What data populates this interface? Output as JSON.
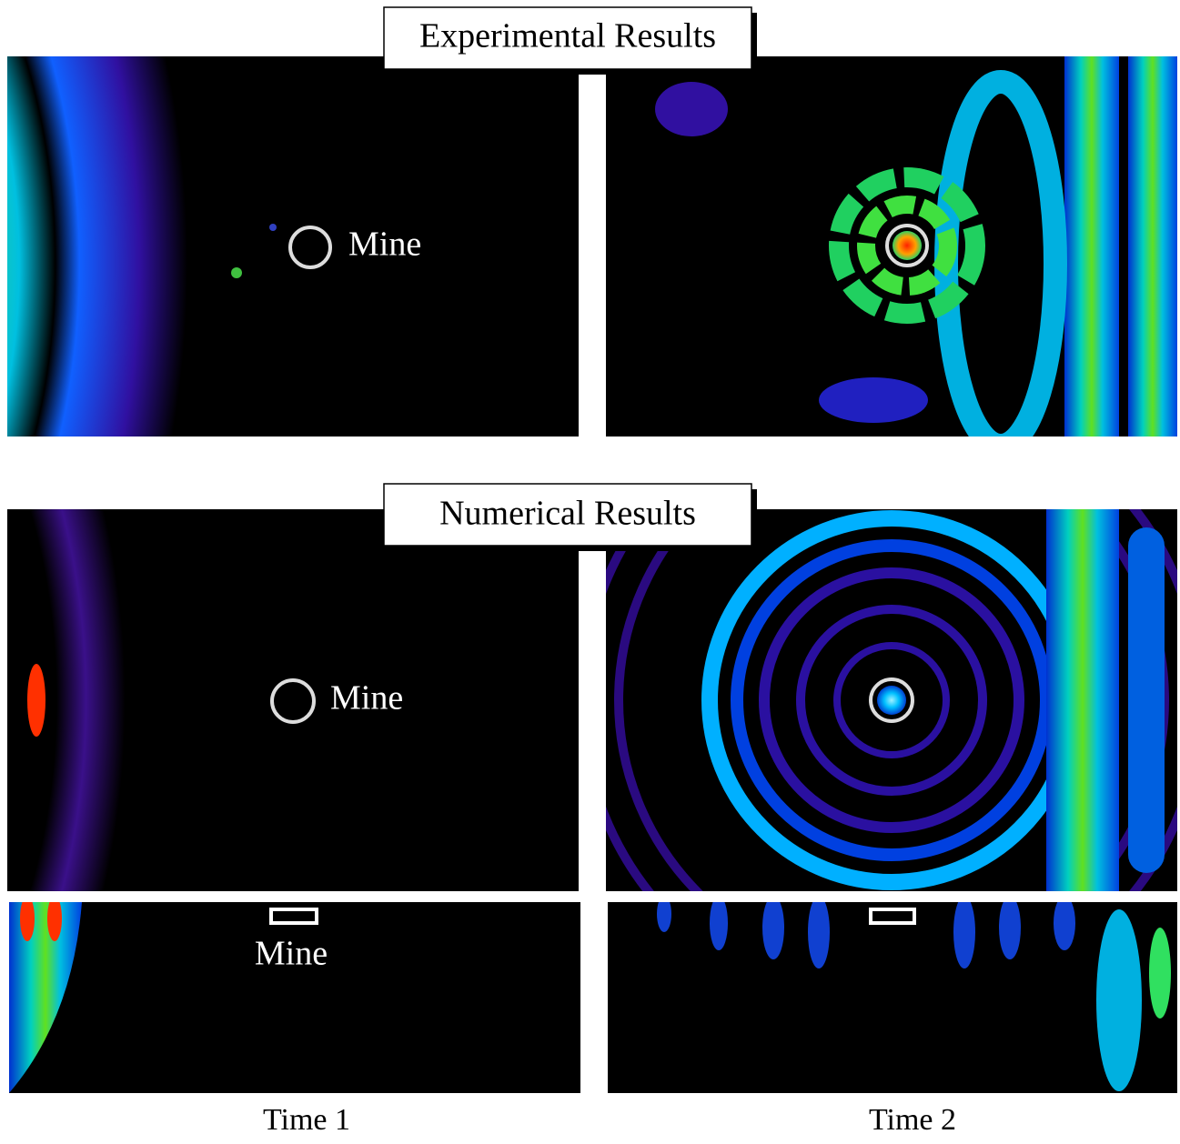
{
  "experimental": {
    "title": "Experimental Results",
    "mine_label": "Mine"
  },
  "numerical": {
    "title": "Numerical Results",
    "top_mine_label": "Mine",
    "side_mine_label": "Mine"
  },
  "time_labels": [
    "Time 1",
    "Time 2"
  ]
}
